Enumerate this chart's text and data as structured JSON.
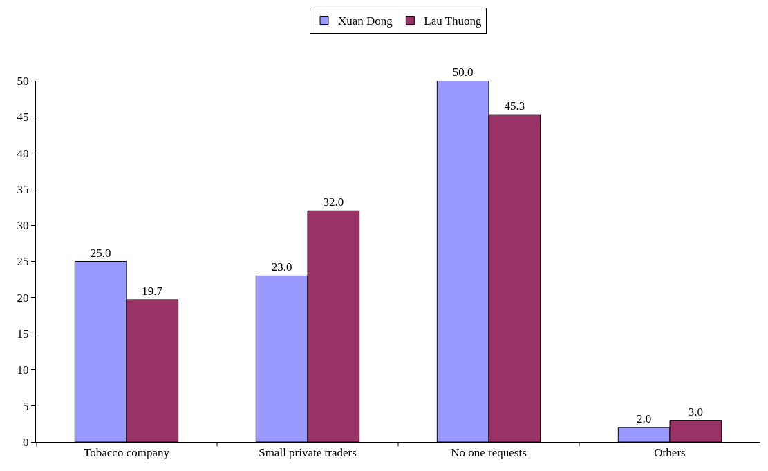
{
  "chart_data": {
    "type": "bar",
    "categories": [
      "Tobacco company",
      "Small private traders",
      "No one requests",
      "Others"
    ],
    "series": [
      {
        "name": "Xuan Dong",
        "color": "#9999ff",
        "values": [
          25.0,
          23.0,
          50.0,
          2.0
        ],
        "value_labels": [
          "25.0",
          "23.0",
          "50.0",
          "2.0"
        ]
      },
      {
        "name": "Lau Thuong",
        "color": "#993366",
        "values": [
          19.7,
          32.0,
          45.3,
          3.0
        ],
        "value_labels": [
          "19.7",
          "32.0",
          "45.3",
          "3.0"
        ]
      }
    ],
    "ylim": [
      0,
      50
    ],
    "yticks": [
      0,
      5,
      10,
      15,
      20,
      25,
      30,
      35,
      40,
      45,
      50
    ],
    "grid": false,
    "legend": "top"
  }
}
